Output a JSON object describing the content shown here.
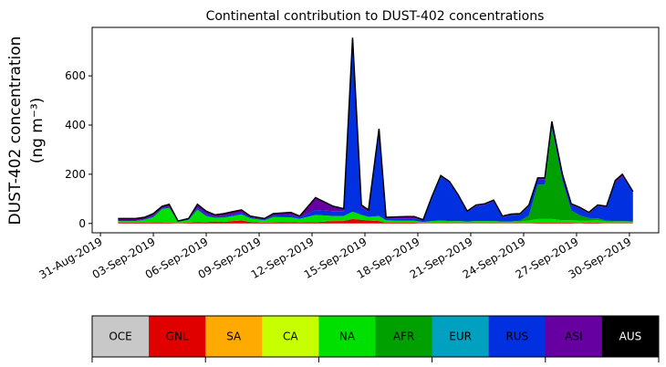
{
  "chart_data": {
    "type": "stacked_area",
    "title": "Continental contribution to DUST-402 concentrations",
    "y_label": [
      "DUST-402 concentration",
      "(ng m⁻³)"
    ],
    "x": [
      1,
      2,
      2.5,
      3,
      3.5,
      3.9,
      4.4,
      5,
      5.5,
      6,
      6.5,
      7,
      7.5,
      8,
      8.5,
      9.3,
      9.8,
      10.8,
      11.3,
      12.2,
      13.2,
      13.8,
      14.3,
      14.8,
      15.2,
      15.8,
      16.2,
      17.3,
      17.8,
      18.3,
      18.8,
      19.3,
      19.8,
      20.3,
      20.8,
      21.3,
      21.8,
      22.3,
      22.8,
      23.3,
      23.8,
      24.3,
      24.8,
      25.2,
      25.6,
      26.2,
      26.7,
      27.2,
      27.7,
      28.2,
      28.7,
      29.2,
      29.6,
      30.2
    ],
    "xlim": [
      -0.47,
      31.66
    ],
    "xticks": [
      {
        "value": 0,
        "label": "31-Aug-2019"
      },
      {
        "value": 3,
        "label": "03-Sep-2019"
      },
      {
        "value": 6,
        "label": "06-Sep-2019"
      },
      {
        "value": 9,
        "label": "09-Sep-2019"
      },
      {
        "value": 12,
        "label": "12-Sep-2019"
      },
      {
        "value": 15,
        "label": "15-Sep-2019"
      },
      {
        "value": 18,
        "label": "18-Sep-2019"
      },
      {
        "value": 21,
        "label": "21-Sep-2019"
      },
      {
        "value": 24,
        "label": "24-Sep-2019"
      },
      {
        "value": 27,
        "label": "27-Sep-2019"
      },
      {
        "value": 30,
        "label": "30-Sep-2019"
      }
    ],
    "ylim": [
      -38,
      797
    ],
    "yticks": [
      0,
      200,
      400,
      600
    ],
    "series": [
      {
        "name": "OCE",
        "color": "#c8c8c8",
        "values": [
          0,
          0,
          0,
          0,
          0,
          0,
          0,
          0,
          0,
          0,
          0,
          0,
          0,
          0,
          0,
          0,
          0,
          0,
          0,
          0,
          0,
          0,
          0,
          0,
          0,
          0,
          0,
          0,
          0,
          0,
          0,
          0,
          0,
          0,
          0,
          0,
          0,
          0,
          0,
          0,
          0,
          0,
          0,
          0,
          0,
          0,
          0,
          0,
          0,
          0,
          0,
          0,
          0,
          0
        ]
      },
      {
        "name": "GNL",
        "color": "#e00000",
        "values": [
          3,
          3,
          3,
          4,
          4,
          3,
          2,
          3,
          6,
          5,
          8,
          6,
          10,
          12,
          6,
          3,
          4,
          5,
          4,
          5,
          10,
          10,
          18,
          15,
          12,
          10,
          3,
          3,
          3,
          2,
          2,
          2,
          2,
          2,
          2,
          2,
          2,
          2,
          2,
          2,
          2,
          2,
          3,
          3,
          3,
          3,
          3,
          2,
          4,
          3,
          2,
          2,
          2,
          2
        ]
      },
      {
        "name": "SA",
        "color": "#ffaa00",
        "values": [
          0,
          0,
          0,
          0,
          0,
          0,
          0,
          0,
          0,
          0,
          0,
          0,
          0,
          0,
          0,
          0,
          0,
          0,
          0,
          0,
          0,
          0,
          0,
          0,
          0,
          0,
          0,
          0,
          0,
          0,
          0,
          0,
          0,
          0,
          0,
          0,
          0,
          0,
          0,
          0,
          0,
          0,
          0,
          0,
          0,
          0,
          0,
          0,
          0,
          0,
          0,
          0,
          0,
          0
        ]
      },
      {
        "name": "CA",
        "color": "#c8ff00",
        "values": [
          0,
          0,
          0,
          0,
          0,
          0,
          0,
          0,
          0,
          0,
          0,
          0,
          0,
          0,
          0,
          0,
          0,
          0,
          0,
          0,
          0,
          0,
          0,
          0,
          0,
          0,
          0,
          0,
          0,
          0,
          0,
          0,
          0,
          0,
          0,
          0,
          0,
          0,
          0,
          0,
          0,
          0,
          0,
          0,
          0,
          0,
          0,
          0,
          0,
          0,
          0,
          0,
          0,
          0
        ]
      },
      {
        "name": "NA",
        "color": "#00e000",
        "values": [
          7,
          7,
          12,
          22,
          55,
          60,
          5,
          12,
          50,
          25,
          15,
          18,
          20,
          25,
          15,
          10,
          22,
          20,
          15,
          30,
          20,
          20,
          30,
          20,
          15,
          20,
          10,
          8,
          8,
          4,
          8,
          10,
          8,
          8,
          6,
          8,
          8,
          8,
          6,
          6,
          6,
          10,
          15,
          15,
          15,
          10,
          10,
          10,
          8,
          10,
          6,
          6,
          6,
          6
        ]
      },
      {
        "name": "AFR",
        "color": "#00a000",
        "values": [
          0,
          0,
          0,
          0,
          0,
          0,
          0,
          0,
          0,
          0,
          0,
          0,
          0,
          0,
          0,
          0,
          0,
          0,
          0,
          0,
          0,
          0,
          0,
          0,
          0,
          0,
          0,
          0,
          0,
          0,
          0,
          0,
          0,
          0,
          0,
          0,
          0,
          0,
          0,
          0,
          3,
          20,
          140,
          140,
          370,
          160,
          40,
          20,
          10,
          8,
          3,
          2,
          2,
          0
        ]
      },
      {
        "name": "EUR",
        "color": "#00a0c0",
        "values": [
          0,
          0,
          0,
          0,
          0,
          0,
          0,
          0,
          0,
          0,
          0,
          0,
          0,
          0,
          0,
          0,
          0,
          0,
          0,
          0,
          0,
          0,
          0,
          0,
          0,
          0,
          0,
          0,
          0,
          0,
          0,
          0,
          0,
          0,
          0,
          0,
          0,
          0,
          0,
          0,
          0,
          0,
          0,
          0,
          0,
          0,
          0,
          0,
          0,
          0,
          0,
          0,
          0,
          0
        ]
      },
      {
        "name": "RUS",
        "color": "#0030e0",
        "values": [
          2,
          2,
          2,
          4,
          4,
          5,
          1,
          2,
          8,
          8,
          5,
          6,
          6,
          6,
          4,
          3,
          6,
          8,
          6,
          20,
          20,
          20,
          700,
          30,
          20,
          350,
          8,
          10,
          10,
          6,
          95,
          178,
          155,
          100,
          38,
          60,
          65,
          80,
          18,
          25,
          24,
          38,
          20,
          20,
          20,
          20,
          22,
          28,
          18,
          50,
          55,
          155,
          180,
          120
        ]
      },
      {
        "name": "ASI",
        "color": "#6600a0",
        "values": [
          8,
          8,
          8,
          10,
          7,
          10,
          2,
          3,
          14,
          12,
          7,
          10,
          12,
          12,
          5,
          4,
          8,
          12,
          5,
          50,
          20,
          10,
          7,
          10,
          8,
          5,
          4,
          7,
          7,
          3,
          5,
          5,
          5,
          5,
          4,
          5,
          5,
          5,
          4,
          5,
          5,
          5,
          7,
          7,
          7,
          7,
          5,
          5,
          5,
          4,
          4,
          10,
          10,
          2
        ]
      },
      {
        "name": "AUS",
        "color": "#000000",
        "values": [
          0,
          0,
          0,
          0,
          0,
          0,
          0,
          0,
          0,
          0,
          0,
          0,
          0,
          0,
          0,
          0,
          0,
          0,
          0,
          0,
          0,
          0,
          0,
          0,
          0,
          0,
          0,
          0,
          0,
          0,
          0,
          0,
          0,
          0,
          0,
          0,
          0,
          0,
          0,
          0,
          0,
          0,
          0,
          0,
          0,
          0,
          0,
          0,
          0,
          0,
          0,
          0,
          0,
          0
        ]
      }
    ]
  }
}
